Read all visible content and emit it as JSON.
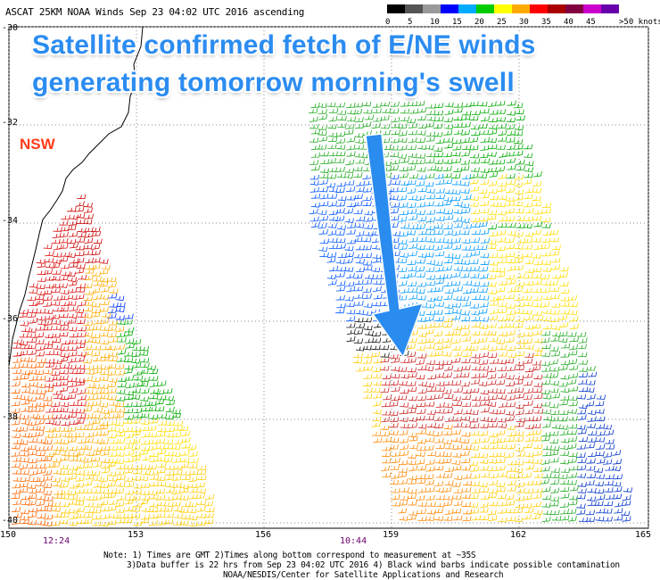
{
  "header": {
    "title": "ASCAT 25KM NOAA Winds Sep 23 04:02 UTC 2016 ascending"
  },
  "legend": {
    "unit": ">50 knots",
    "labels": [
      "0",
      "5",
      "10",
      "15",
      "20",
      "25",
      "30",
      "35",
      "40",
      "45"
    ],
    "colors": [
      "#000000",
      "#555555",
      "#999999",
      "#0000ff",
      "#00aaff",
      "#00cc00",
      "#ffff00",
      "#ffaa00",
      "#ff0000",
      "#aa0000",
      "#800040",
      "#cc00cc",
      "#6600aa"
    ]
  },
  "headline": {
    "line1": "Satellite confirmed fetch of E/NE winds",
    "line2": "generating tomorrow morning's swell",
    "color": "#2b8cf0"
  },
  "region_label": "NSW",
  "axes": {
    "lat_ticks": [
      "-30",
      "-32",
      "-34",
      "-36",
      "-38",
      "-40"
    ],
    "lon_ticks": [
      "150",
      "153",
      "156",
      "159",
      "162",
      "165"
    ]
  },
  "pass_times": [
    "12:24",
    "10:44"
  ],
  "notes": [
    "Note: 1) Times are GMT 2)Times along bottom correspond to measurement at ~35S",
    "3)Data buffer is 22 hrs from Sep 23 04:02 UTC 2016 4) Black wind barbs indicate possible contamination",
    "NOAA/NESDIS/Center for Satellite Applications and Research"
  ]
}
